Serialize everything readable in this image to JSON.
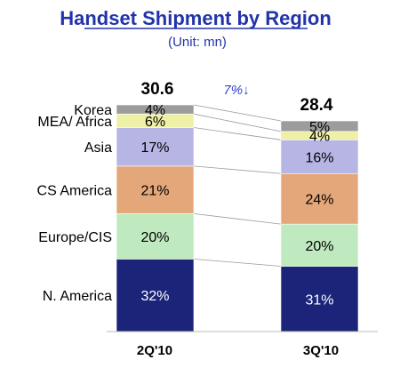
{
  "chart_data": {
    "type": "bar",
    "subtype": "stacked-100",
    "title": "Handset Shipment by Region",
    "subtitle": "(Unit: mn)",
    "categories": [
      "2Q'10",
      "3Q'10"
    ],
    "totals": [
      "30.6",
      "28.4"
    ],
    "change_label": "7%↓",
    "series": [
      {
        "name": "N. America",
        "values": [
          32,
          31
        ],
        "labels": [
          "32%",
          "31%"
        ],
        "color": "#1c2479",
        "label_color": "#ffffff"
      },
      {
        "name": "Europe/CIS",
        "values": [
          20,
          20
        ],
        "labels": [
          "20%",
          "20%"
        ],
        "color": "#bfe9bf",
        "label_color": "#000000"
      },
      {
        "name": "CS America",
        "values": [
          21,
          24
        ],
        "labels": [
          "21%",
          "24%"
        ],
        "color": "#e3a77a",
        "label_color": "#000000"
      },
      {
        "name": "Asia",
        "values": [
          17,
          16
        ],
        "labels": [
          "17%",
          "16%"
        ],
        "color": "#b7b5e4",
        "label_color": "#000000"
      },
      {
        "name": "MEA/ Africa",
        "values": [
          6,
          4
        ],
        "labels": [
          "6%",
          "4%"
        ],
        "color": "#eef0a6",
        "label_color": "#000000"
      },
      {
        "name": "Korea",
        "values": [
          4,
          5
        ],
        "labels": [
          "4%",
          "5%"
        ],
        "color": "#9c9c9c",
        "label_color": "#000000"
      }
    ]
  }
}
